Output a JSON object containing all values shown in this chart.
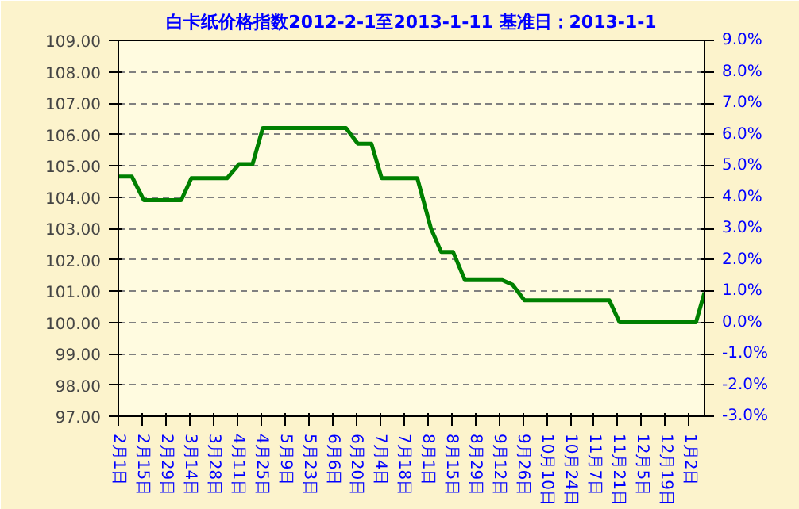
{
  "chart_data": {
    "type": "line",
    "title": "白卡纸价格指数2012-2-1至2013-1-11 基准日：2013-1-1",
    "x": [
      "2012-02-01",
      "2012-02-09",
      "2012-02-16",
      "2012-03-09",
      "2012-03-15",
      "2012-04-05",
      "2012-04-12",
      "2012-04-20",
      "2012-04-26",
      "2012-06-14",
      "2012-06-21",
      "2012-06-29",
      "2012-07-05",
      "2012-07-26",
      "2012-08-03",
      "2012-08-09",
      "2012-08-16",
      "2012-08-23",
      "2012-09-14",
      "2012-09-20",
      "2012-09-27",
      "2012-11-16",
      "2012-11-22",
      "2013-01-06",
      "2013-01-11"
    ],
    "series": [
      {
        "color": "#008000",
        "values": [
          104.65,
          104.65,
          103.9,
          103.9,
          104.6,
          104.6,
          105.05,
          105.05,
          106.2,
          106.2,
          105.7,
          105.7,
          104.6,
          104.6,
          103.0,
          102.25,
          102.25,
          101.35,
          101.35,
          101.2,
          100.7,
          100.7,
          100.0,
          100.0,
          100.95
        ]
      }
    ],
    "xlim": [
      "2012-02-01",
      "2013-01-11"
    ],
    "xticks": [
      {
        "value": "2012-02-01",
        "label": "2月1日"
      },
      {
        "value": "2012-02-15",
        "label": "2月15日"
      },
      {
        "value": "2012-02-29",
        "label": "2月29日"
      },
      {
        "value": "2012-03-14",
        "label": "3月14日"
      },
      {
        "value": "2012-03-28",
        "label": "3月28日"
      },
      {
        "value": "2012-04-11",
        "label": "4月11日"
      },
      {
        "value": "2012-04-25",
        "label": "4月25日"
      },
      {
        "value": "2012-05-09",
        "label": "5月9日"
      },
      {
        "value": "2012-05-23",
        "label": "5月23日"
      },
      {
        "value": "2012-06-06",
        "label": "6月6日"
      },
      {
        "value": "2012-06-20",
        "label": "6月20日"
      },
      {
        "value": "2012-07-04",
        "label": "7月4日"
      },
      {
        "value": "2012-07-18",
        "label": "7月18日"
      },
      {
        "value": "2012-08-01",
        "label": "8月1日"
      },
      {
        "value": "2012-08-15",
        "label": "8月15日"
      },
      {
        "value": "2012-08-29",
        "label": "8月29日"
      },
      {
        "value": "2012-09-12",
        "label": "9月12日"
      },
      {
        "value": "2012-09-26",
        "label": "9月26日"
      },
      {
        "value": "2012-10-10",
        "label": "10月10日"
      },
      {
        "value": "2012-10-24",
        "label": "10月24日"
      },
      {
        "value": "2012-11-07",
        "label": "11月7日"
      },
      {
        "value": "2012-11-21",
        "label": "11月21日"
      },
      {
        "value": "2012-12-05",
        "label": "12月5日"
      },
      {
        "value": "2012-12-19",
        "label": "12月19日"
      },
      {
        "value": "2013-01-02",
        "label": "1月2日"
      }
    ],
    "ylim": [
      97,
      109
    ],
    "yticks": [
      {
        "value": 97,
        "label": "97.00"
      },
      {
        "value": 98,
        "label": "98.00"
      },
      {
        "value": 99,
        "label": "99.00"
      },
      {
        "value": 100,
        "label": "100.00"
      },
      {
        "value": 101,
        "label": "101.00"
      },
      {
        "value": 102,
        "label": "102.00"
      },
      {
        "value": 103,
        "label": "103.00"
      },
      {
        "value": 104,
        "label": "104.00"
      },
      {
        "value": 105,
        "label": "105.00"
      },
      {
        "value": 106,
        "label": "106.00"
      },
      {
        "value": 107,
        "label": "107.00"
      },
      {
        "value": 108,
        "label": "108.00"
      },
      {
        "value": 109,
        "label": "109.00"
      }
    ],
    "y2lim": [
      -3,
      9
    ],
    "y2ticks": [
      {
        "value": -3,
        "label": "-3.0%"
      },
      {
        "value": -2,
        "label": "-2.0%"
      },
      {
        "value": -1,
        "label": "-1.0%"
      },
      {
        "value": 0,
        "label": "0.0%"
      },
      {
        "value": 1,
        "label": "1.0%"
      },
      {
        "value": 2,
        "label": "2.0%"
      },
      {
        "value": 3,
        "label": "3.0%"
      },
      {
        "value": 4,
        "label": "4.0%"
      },
      {
        "value": 5,
        "label": "5.0%"
      },
      {
        "value": 6,
        "label": "6.0%"
      },
      {
        "value": 7,
        "label": "7.0%"
      },
      {
        "value": 8,
        "label": "8.0%"
      },
      {
        "value": 9,
        "label": "9.0%"
      }
    ],
    "grid": "y"
  }
}
